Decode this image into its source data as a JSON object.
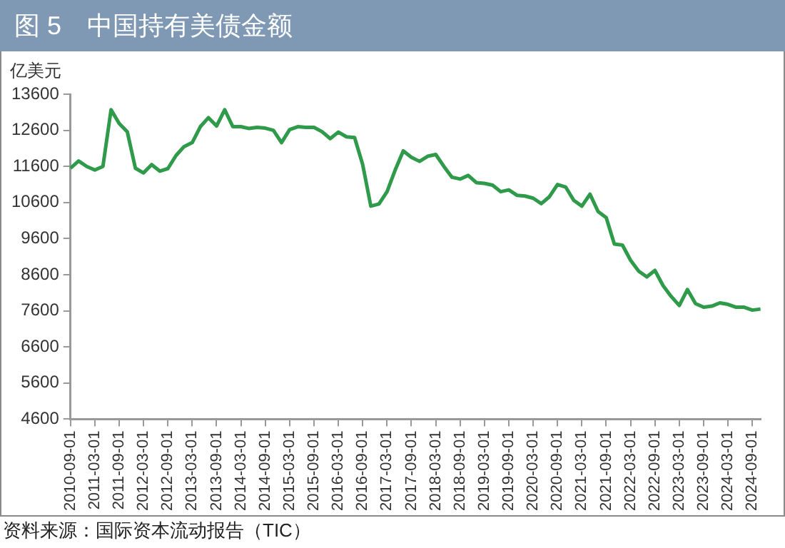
{
  "chart_data": {
    "type": "line",
    "title": "图 5　中国持有美债金额",
    "ylabel": "亿美元",
    "annotations": [
      "资料来源：国际资本流动报告（TIC）"
    ],
    "categories": [
      "2010-09-01",
      null,
      null,
      "2011-03-01",
      null,
      null,
      "2011-09-01",
      null,
      null,
      "2012-03-01",
      null,
      null,
      "2012-09-01",
      null,
      null,
      "2013-03-01",
      null,
      null,
      "2013-09-01",
      null,
      null,
      "2014-03-01",
      null,
      null,
      "2014-09-01",
      null,
      null,
      "2015-03-01",
      null,
      null,
      "2015-09-01",
      null,
      null,
      "2016-03-01",
      null,
      null,
      "2016-09-01",
      null,
      null,
      "2017-03-01",
      null,
      null,
      "2017-09-01",
      null,
      null,
      "2018-03-01",
      null,
      null,
      "2018-09-01",
      null,
      null,
      "2019-03-01",
      null,
      null,
      "2019-09-01",
      null,
      null,
      "2020-03-01",
      null,
      null,
      "2020-09-01",
      null,
      null,
      "2021-03-01",
      null,
      null,
      "2021-09-01",
      null,
      null,
      "2022-03-01",
      null,
      null,
      "2022-09-01",
      null,
      null,
      "2023-03-01",
      null,
      null,
      "2023-09-01",
      null,
      null,
      "2024-03-01",
      null,
      null,
      "2024-09-01",
      null
    ],
    "series": [
      {
        "color": "#2e9a4a",
        "values": [
          11550,
          11750,
          11600,
          11500,
          11600,
          13170,
          12790,
          12560,
          11550,
          11420,
          11650,
          11470,
          11540,
          11900,
          12150,
          12260,
          12700,
          12950,
          12720,
          13170,
          12700,
          12700,
          12650,
          12680,
          12660,
          12600,
          12260,
          12620,
          12700,
          12680,
          12680,
          12560,
          12370,
          12550,
          12420,
          12400,
          11650,
          10500,
          10560,
          10900,
          11500,
          12030,
          11850,
          11740,
          11880,
          11930,
          11600,
          11300,
          11250,
          11350,
          11150,
          11130,
          11080,
          10900,
          10950,
          10800,
          10780,
          10720,
          10570,
          10760,
          11100,
          11030,
          10660,
          10500,
          10830,
          10350,
          10180,
          9450,
          9420,
          9000,
          8700,
          8540,
          8720,
          8300,
          8000,
          7750,
          8190,
          7800,
          7700,
          7730,
          7820,
          7780,
          7700,
          7700,
          7620,
          7650
        ]
      }
    ],
    "ylim": [
      4600,
      13600
    ],
    "yticks": [
      4600,
      5600,
      6600,
      7600,
      8600,
      9600,
      10600,
      11600,
      12600,
      13600
    ],
    "grid": false,
    "legend": false,
    "marker": "none",
    "line_style": "solid"
  }
}
